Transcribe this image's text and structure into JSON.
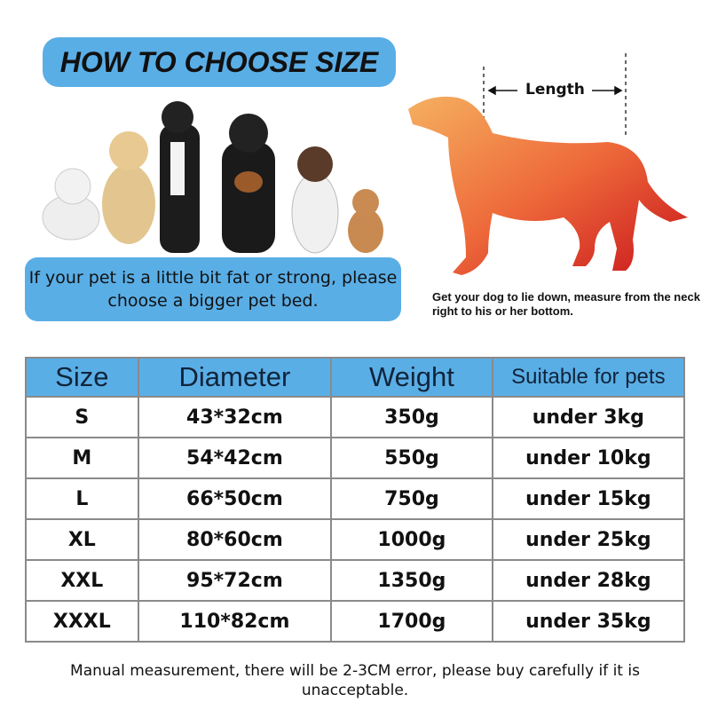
{
  "title": "HOW TO CHOOSE SIZE",
  "note": "If your pet is a little bit fat or strong, please choose a bigger pet bed.",
  "diagram": {
    "length_label": "Length",
    "caption": "Get your dog to lie down, measure from the neck right to his or her bottom."
  },
  "table": {
    "headers": [
      "Size",
      "Diameter",
      "Weight",
      "Suitable for pets"
    ],
    "rows": [
      [
        "S",
        "43*32cm",
        "350g",
        "under 3kg"
      ],
      [
        "M",
        "54*42cm",
        "550g",
        "under 10kg"
      ],
      [
        "L",
        "66*50cm",
        "750g",
        "under 15kg"
      ],
      [
        "XL",
        "80*60cm",
        "1000g",
        "under 25kg"
      ],
      [
        "XXL",
        "95*72cm",
        "1350g",
        "under 28kg"
      ],
      [
        "XXXL",
        "110*82cm",
        "1700g",
        "under 35kg"
      ]
    ]
  },
  "footer": "Manual measurement, there will be 2-3CM error, please buy carefully if it is unacceptable.",
  "colors": {
    "accent": "#5aaee6",
    "dog_gradient": [
      "#f5b060",
      "#c8141c"
    ]
  }
}
